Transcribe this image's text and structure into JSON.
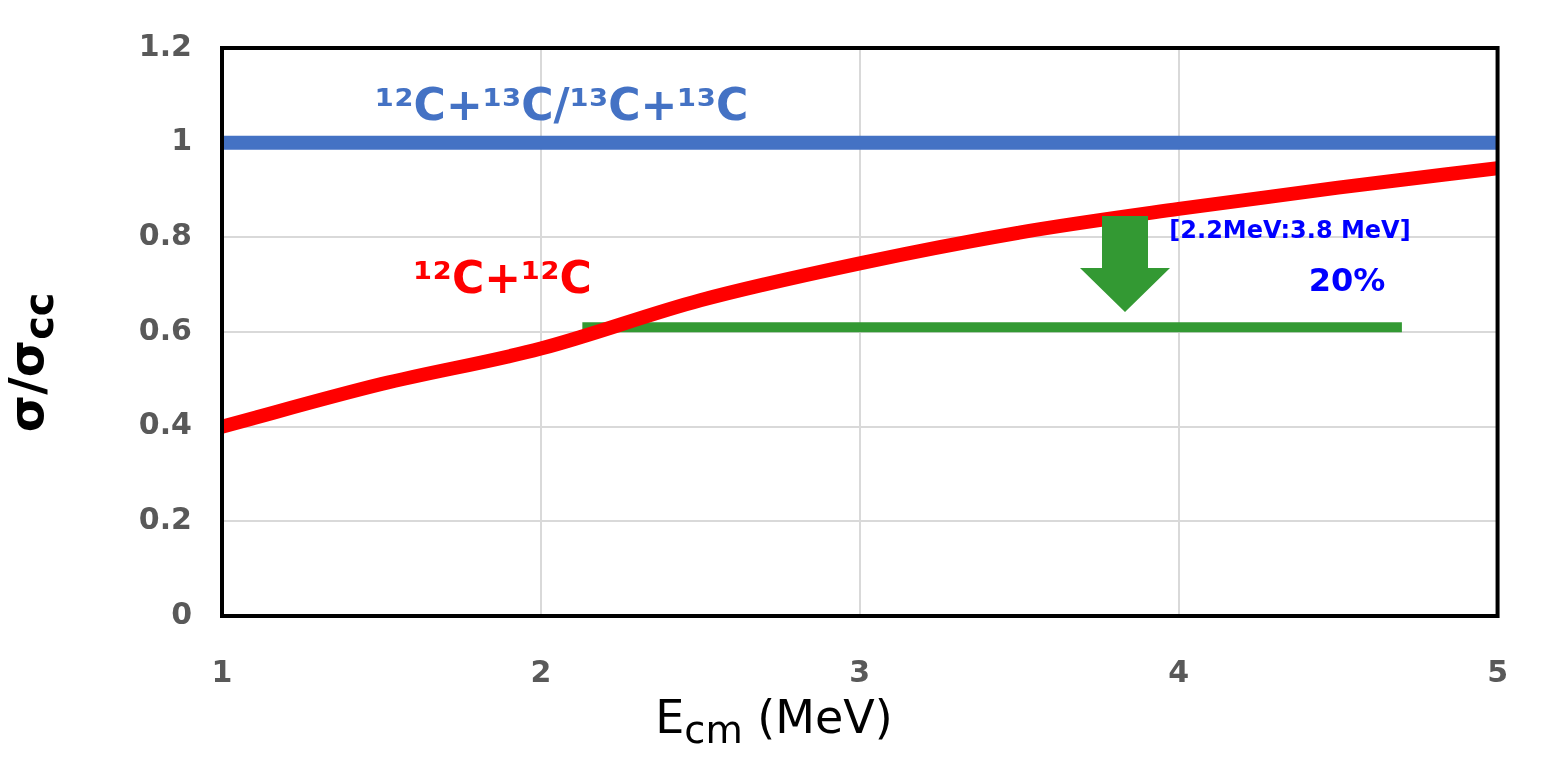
{
  "chart_data": {
    "type": "line",
    "xlabel": "E$_{cm}$ (MeV)",
    "ylabel": "σ/σ$_{cc}$",
    "xlim": [
      1,
      5
    ],
    "xticks": [
      1,
      2,
      3,
      4,
      5
    ],
    "ylim": [
      0,
      1.2
    ],
    "yticks": [
      0,
      0.2,
      0.4,
      0.6,
      0.8,
      1,
      1.2
    ],
    "grid": true,
    "legend": false,
    "marker": "none",
    "line_style": "solid",
    "series": [
      {
        "name": "¹²C+¹³C/¹³C+¹³C",
        "color": "#4472c4",
        "x": [
          1,
          5
        ],
        "values": [
          1,
          1
        ]
      },
      {
        "name": "¹²C+¹²C",
        "color": "#ff0000",
        "x": [
          1,
          1.5,
          2,
          2.5,
          3,
          3.5,
          4,
          4.5,
          5
        ],
        "values": [
          0.4,
          0.49,
          0.565,
          0.667,
          0.745,
          0.81,
          0.86,
          0.905,
          0.946
        ]
      },
      {
        "color": "#339933",
        "x": [
          2.13,
          4.7
        ],
        "values": [
          0.61,
          0.61
        ]
      }
    ],
    "annotations": [
      "[2.2MeV:3.8 MeV]",
      "20%"
    ]
  }
}
